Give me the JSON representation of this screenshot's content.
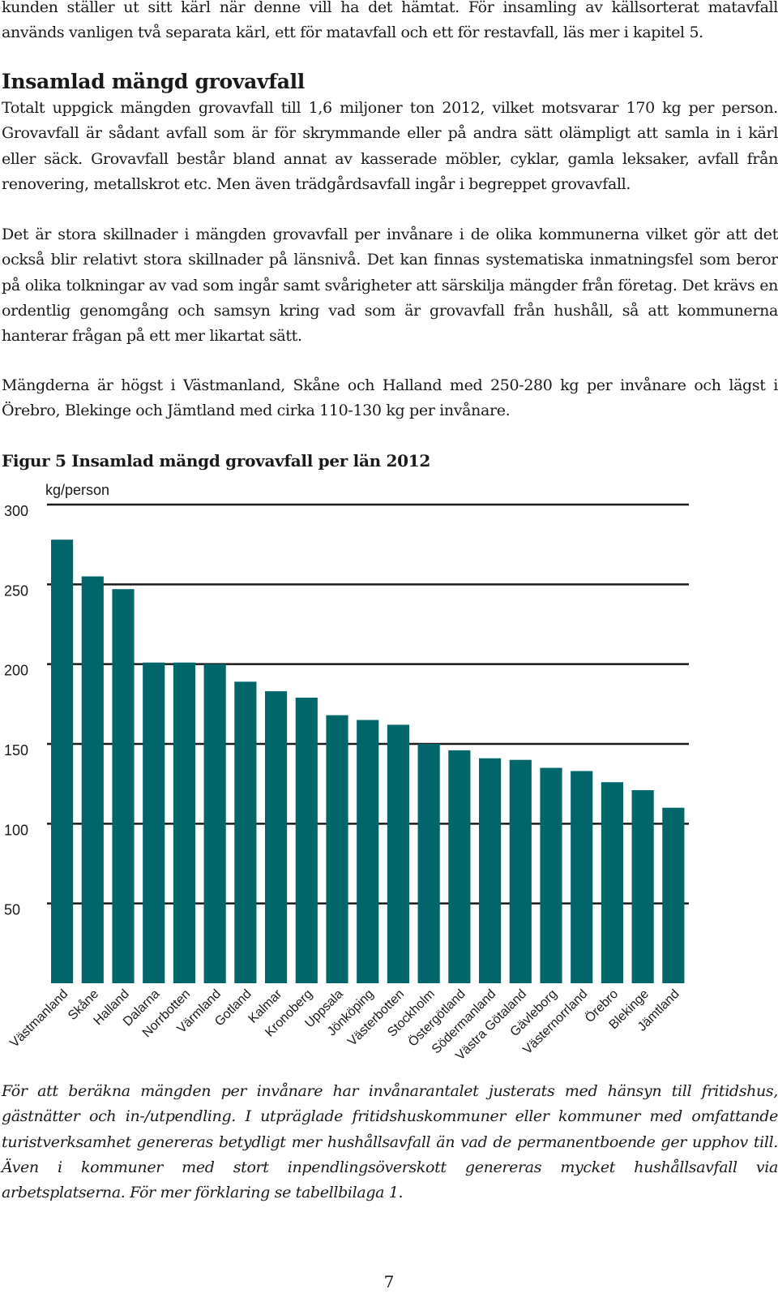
{
  "intro_paragraph": "kunden ställer ut sitt kärl när denne vill ha det hämtat. För insamling av källsorterat matavfall används vanligen två separata kärl, ett för matavfall och ett för restavfall, läs mer i kapitel 5.",
  "section": {
    "heading": "Insamlad mängd grovavfall",
    "paragraphs": [
      "Totalt uppgick mängden grovavfall till 1,6 miljoner ton 2012, vilket motsvarar 170 kg per person. Grovavfall är sådant avfall som är för skrymmande eller på andra sätt olämpligt att samla in i kärl eller säck. Grovavfall består bland annat av kasserade möbler, cyklar, gamla leksaker, avfall från renovering, metallskrot etc. Men även trädgårdsavfall ingår i begreppet grovavfall.",
      "Det är stora skillnader i mängden grovavfall per invånare i de olika kommunerna vilket gör att det också blir relativt stora skillnader på länsnivå. Det kan finnas systematiska inmatningsfel som beror på olika tolkningar av vad som ingår samt svårigheter att särskilja mängder från företag. Det krävs en ordentlig genomgång och samsyn kring vad som är grovavfall från hushåll, så att kommunerna hanterar frågan på ett mer likartat sätt.",
      "Mängderna är högst i Västmanland, Skåne och Halland med 250-280 kg per invånare och lägst i Örebro, Blekinge och Jämtland med cirka 110-130 kg per invånare."
    ]
  },
  "figure_caption": "Figur 5 Insamlad mängd grovavfall per län 2012",
  "footnote": "För att beräkna mängden per invånare har invånarantalet justerats med hänsyn till fritidshus, gästnätter och in-/utpendling. I utpräglade fritidshuskommuner eller kommuner med omfattande turistverksamhet genereras betydligt mer hushållsavfall än vad de permanentboende ger upphov till. Även i kommuner med stort inpendlingsöverskott genereras mycket hushållsavfall via arbetsplatserna. För mer förklaring se tabellbilaga 1.",
  "page_number": "7",
  "colors": {
    "bar": "#00666a",
    "grid": "#1a1a1a",
    "text": "#1a1a1a"
  },
  "chart_data": {
    "type": "bar",
    "title": "",
    "xlabel": "",
    "ylabel": "kg/person",
    "ylim": [
      0,
      300
    ],
    "yticks": [
      50,
      100,
      150,
      200,
      250,
      300
    ],
    "grid": true,
    "legend": "none",
    "categories": [
      "Västmanland",
      "Skåne",
      "Halland",
      "Dalarna",
      "Norrbotten",
      "Värmland",
      "Gotland",
      "Kalmar",
      "Kronoberg",
      "Uppsala",
      "Jönköping",
      "Västerbotten",
      "Stockholm",
      "Östergötland",
      "Södermanland",
      "Västra Götaland",
      "Gävleborg",
      "Västernorrland",
      "Örebro",
      "Blekinge",
      "Jämtland"
    ],
    "values": [
      278,
      255,
      247,
      201,
      201,
      200,
      189,
      183,
      179,
      168,
      165,
      162,
      150,
      146,
      141,
      140,
      135,
      133,
      126,
      121,
      110
    ]
  }
}
